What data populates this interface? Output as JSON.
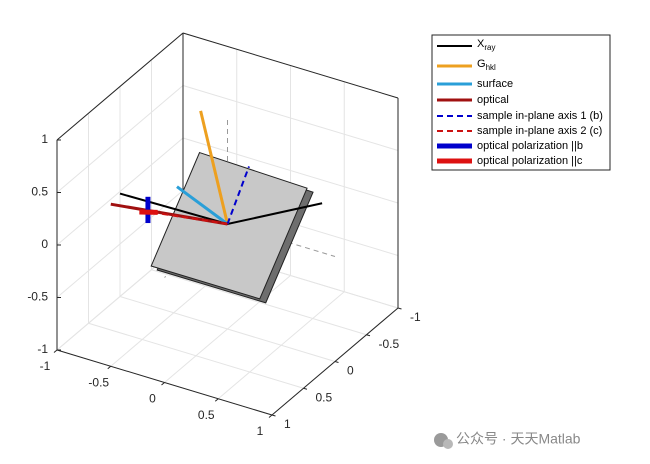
{
  "chart_data": {
    "type": "line3d",
    "xlim": [
      -1,
      1
    ],
    "ylim": [
      -1,
      1
    ],
    "zlim": [
      -1,
      1
    ],
    "xticks": [
      -1,
      -0.5,
      0,
      0.5,
      1
    ],
    "yticks": [
      -1,
      -0.5,
      0,
      0.5,
      1
    ],
    "zticks": [
      -1,
      -0.5,
      0,
      0.5,
      1
    ],
    "grid": true,
    "plane": {
      "color": "#c8c8c8",
      "x": [
        -0.26,
        0.74,
        0.3,
        -0.71
      ],
      "y": [
        0,
        0,
        0,
        0
      ],
      "z": [
        0.6,
        0.57,
        -0.62,
        -0.62
      ]
    },
    "series": [
      {
        "name": "X_{ray}",
        "color": "#000000",
        "width": 2,
        "dashed": false,
        "x": [
          -1.0,
          0,
          0.88
        ],
        "y": [
          0,
          0,
          0
        ],
        "z": [
          -0.02,
          0,
          0.47
        ]
      },
      {
        "name": "G_{hkl}",
        "color": "#eda020",
        "width": 3,
        "dashed": false,
        "x": [
          0,
          -0.25
        ],
        "y": [
          0,
          0
        ],
        "z": [
          0,
          1.0
        ]
      },
      {
        "name": "surface",
        "color": "#2a9fd8",
        "width": 3,
        "dashed": false,
        "x": [
          0,
          -0.47
        ],
        "y": [
          0,
          0
        ],
        "z": [
          0,
          0.21
        ]
      },
      {
        "name": "optical",
        "color": "#a01010",
        "width": 3,
        "dashed": false,
        "x": [
          0,
          -0.91
        ],
        "y": [
          0,
          0.3
        ],
        "z": [
          0,
          0.06
        ]
      },
      {
        "name": "sample in-plane axis 1 (b)",
        "color": "#0000cc",
        "width": 2,
        "dashed": true,
        "x": [
          0,
          0.2
        ],
        "y": [
          0,
          0
        ],
        "z": [
          0,
          0.61
        ]
      },
      {
        "name": "sample in-plane axis 2 (c)",
        "color": "#cc1111",
        "width": 2,
        "dashed": true,
        "x": [
          0,
          -0.73
        ],
        "y": [
          0,
          0
        ],
        "z": [
          0,
          -0.11
        ]
      },
      {
        "name": "optical polarization ||b",
        "color": "#0000cc",
        "width": 5,
        "dashed": false,
        "x": [
          -0.74,
          -0.74
        ],
        "y": [
          0,
          0
        ],
        "z": [
          0.03,
          -0.22
        ]
      },
      {
        "name": "optical polarization ||c",
        "color": "#dd1111",
        "width": 5,
        "dashed": false,
        "x": [
          -0.82,
          -0.65
        ],
        "y": [
          0,
          0
        ],
        "z": [
          -0.14,
          -0.09
        ]
      }
    ]
  },
  "watermark": "公众号 · 天天Matlab"
}
